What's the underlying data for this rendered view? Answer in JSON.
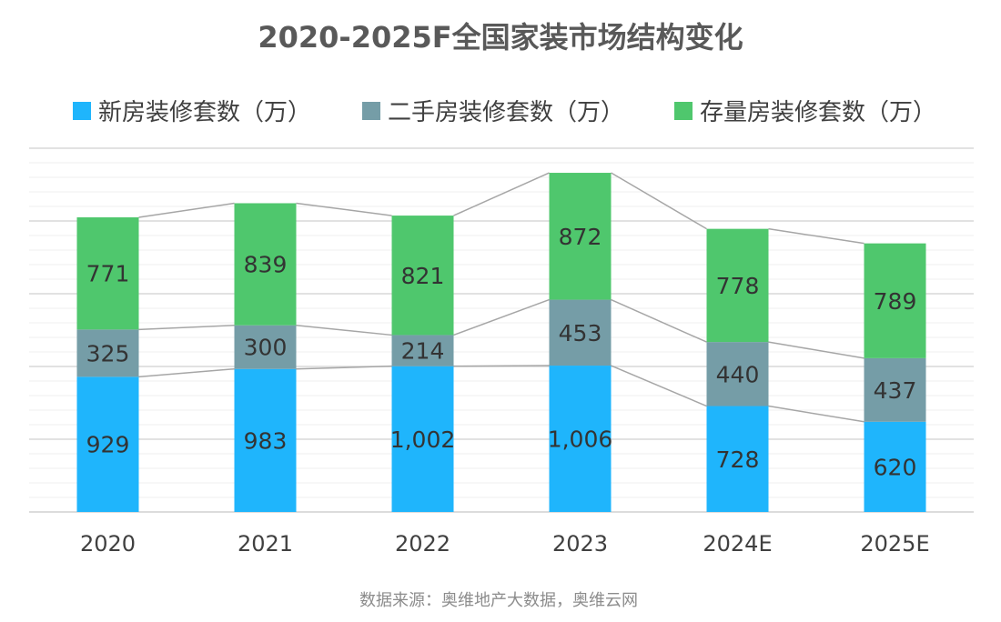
{
  "chart_data": {
    "type": "bar",
    "stacked": true,
    "title": "2020-2025F全国家装市场结构变化",
    "categories": [
      "2020",
      "2021",
      "2022",
      "2023",
      "2024E",
      "2025E"
    ],
    "series": [
      {
        "name": "新房装修套数（万）",
        "color": "#1FB5FC",
        "values": [
          929,
          983,
          1002,
          1006,
          728,
          620
        ],
        "labels": [
          "929",
          "983",
          "1,002",
          "1,006",
          "728",
          "620"
        ]
      },
      {
        "name": "二手房装修套数（万）",
        "color": "#759DA7",
        "values": [
          325,
          300,
          214,
          453,
          440,
          437
        ],
        "labels": [
          "325",
          "300",
          "214",
          "453",
          "440",
          "437"
        ]
      },
      {
        "name": "存量房装修套数（万）",
        "color": "#4FC76D",
        "values": [
          771,
          839,
          821,
          872,
          778,
          789
        ],
        "labels": [
          "771",
          "839",
          "821",
          "872",
          "778",
          "789"
        ]
      }
    ],
    "ylim": [
      0,
      2500
    ],
    "grid": true,
    "legend_position": "top",
    "series_lines": true,
    "source": "数据来源：奥维地产大数据，奥维云网"
  }
}
